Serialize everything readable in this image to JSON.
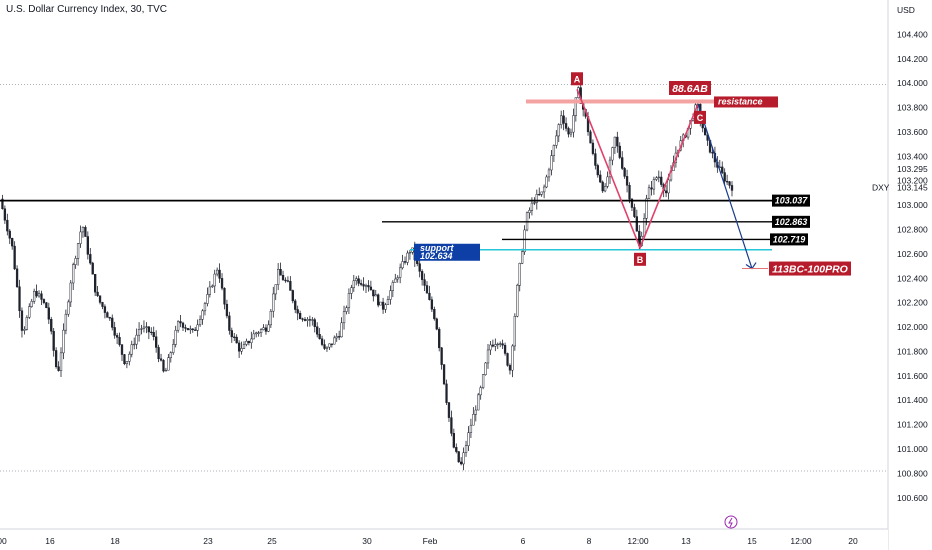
{
  "header": {
    "title": "U.S. Dollar Currency Index, 30, TVC"
  },
  "axis": {
    "currency": "USD",
    "symbol": "DXY",
    "last_price": "103.295",
    "secondary_price": "103.145"
  },
  "chart_data": {
    "type": "candlestick",
    "ylim": [
      100.5,
      104.6
    ],
    "y_ticks": [
      "104.400",
      "104.200",
      "104.000",
      "103.800",
      "103.600",
      "103.400",
      "103.200",
      "103.000",
      "102.800",
      "102.600",
      "102.400",
      "102.200",
      "102.000",
      "101.800",
      "101.600",
      "101.400",
      "101.200",
      "101.000",
      "100.800",
      "100.600"
    ],
    "x_ticks": [
      "00",
      "16",
      "18",
      "23",
      "25",
      "30",
      "Feb",
      "6",
      "8",
      "12:00",
      "13",
      "15",
      "12:00",
      "20"
    ],
    "dotted_levels": [
      103.99,
      100.82
    ],
    "horizontal_levels": [
      {
        "value": 103.037,
        "label": "103.037"
      },
      {
        "value": 102.863,
        "label": "102.863"
      },
      {
        "value": 102.719,
        "label": "102.719"
      }
    ],
    "support": {
      "label": "support",
      "value_label": "102.634",
      "value": 102.634
    },
    "resistance": {
      "label": "resistance",
      "value": 103.85
    },
    "pattern": {
      "points": [
        {
          "label": "A",
          "value": 103.95
        },
        {
          "label": "B",
          "value": 102.65
        },
        {
          "label": "C",
          "value": 103.83
        }
      ],
      "ratio_label": "88.6AB",
      "target_label": "113BC-100PRO",
      "target_value": 102.48
    },
    "path": [
      {
        "t": 0,
        "v": 103.05
      },
      {
        "t": 0.03,
        "v": 102.65
      },
      {
        "t": 0.055,
        "v": 101.95
      },
      {
        "t": 0.085,
        "v": 102.3
      },
      {
        "t": 0.115,
        "v": 102.15
      },
      {
        "t": 0.14,
        "v": 101.6
      },
      {
        "t": 0.175,
        "v": 102.45
      },
      {
        "t": 0.2,
        "v": 102.85
      },
      {
        "t": 0.235,
        "v": 102.25
      },
      {
        "t": 0.27,
        "v": 102.05
      },
      {
        "t": 0.305,
        "v": 101.7
      },
      {
        "t": 0.34,
        "v": 102.0
      },
      {
        "t": 0.37,
        "v": 101.95
      },
      {
        "t": 0.4,
        "v": 101.6
      },
      {
        "t": 0.435,
        "v": 102.05
      },
      {
        "t": 0.47,
        "v": 101.95
      },
      {
        "t": 0.505,
        "v": 102.25
      },
      {
        "t": 0.53,
        "v": 102.5
      },
      {
        "t": 0.555,
        "v": 102.0
      },
      {
        "t": 0.585,
        "v": 101.8
      },
      {
        "t": 0.62,
        "v": 101.95
      },
      {
        "t": 0.65,
        "v": 102.0
      },
      {
        "t": 0.675,
        "v": 102.45
      },
      {
        "t": 0.7,
        "v": 102.35
      },
      {
        "t": 0.725,
        "v": 102.1
      },
      {
        "t": 0.76,
        "v": 102.05
      },
      {
        "t": 0.79,
        "v": 101.8
      },
      {
        "t": 0.825,
        "v": 101.95
      },
      {
        "t": 0.86,
        "v": 102.4
      },
      {
        "t": 0.895,
        "v": 102.35
      },
      {
        "t": 0.93,
        "v": 102.15
      },
      {
        "t": 0.97,
        "v": 102.45
      },
      {
        "t": 1.0,
        "v": 102.65
      },
      {
        "t": 1.03,
        "v": 102.35
      },
      {
        "t": 1.06,
        "v": 102.05
      },
      {
        "t": 1.08,
        "v": 101.55
      },
      {
        "t": 1.1,
        "v": 101.05
      },
      {
        "t": 1.12,
        "v": 100.85
      },
      {
        "t": 1.145,
        "v": 101.2
      },
      {
        "t": 1.17,
        "v": 101.5
      },
      {
        "t": 1.19,
        "v": 101.85
      },
      {
        "t": 1.215,
        "v": 101.9
      },
      {
        "t": 1.24,
        "v": 101.65
      },
      {
        "t": 1.26,
        "v": 102.4
      },
      {
        "t": 1.28,
        "v": 102.9
      },
      {
        "t": 1.3,
        "v": 103.05
      },
      {
        "t": 1.32,
        "v": 103.1
      },
      {
        "t": 1.345,
        "v": 103.45
      },
      {
        "t": 1.365,
        "v": 103.75
      },
      {
        "t": 1.385,
        "v": 103.55
      },
      {
        "t": 1.405,
        "v": 103.95
      },
      {
        "t": 1.425,
        "v": 103.7
      },
      {
        "t": 1.445,
        "v": 103.35
      },
      {
        "t": 1.47,
        "v": 103.1
      },
      {
        "t": 1.495,
        "v": 103.55
      },
      {
        "t": 1.515,
        "v": 103.3
      },
      {
        "t": 1.54,
        "v": 102.95
      },
      {
        "t": 1.555,
        "v": 102.65
      },
      {
        "t": 1.575,
        "v": 103.1
      },
      {
        "t": 1.6,
        "v": 103.25
      },
      {
        "t": 1.62,
        "v": 103.1
      },
      {
        "t": 1.645,
        "v": 103.45
      },
      {
        "t": 1.67,
        "v": 103.6
      },
      {
        "t": 1.695,
        "v": 103.83
      },
      {
        "t": 1.715,
        "v": 103.55
      },
      {
        "t": 1.74,
        "v": 103.35
      },
      {
        "t": 1.765,
        "v": 103.2
      },
      {
        "t": 1.78,
        "v": 103.15
      }
    ]
  }
}
